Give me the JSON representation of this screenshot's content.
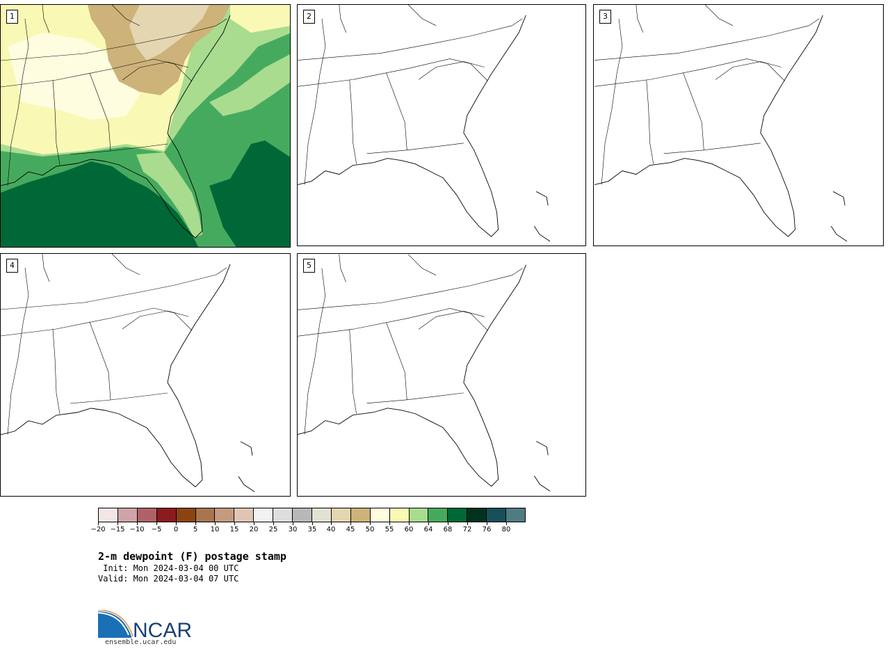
{
  "panels": [
    {
      "number": "1",
      "filled": true
    },
    {
      "number": "2",
      "filled": false
    },
    {
      "number": "3",
      "filled": false
    },
    {
      "number": "4",
      "filled": false
    },
    {
      "number": "5",
      "filled": false
    }
  ],
  "colorbar": {
    "levels": [
      "-20",
      "-15",
      "-10",
      "-5",
      "0",
      "5",
      "10",
      "15",
      "20",
      "25",
      "30",
      "35",
      "40",
      "45",
      "50",
      "55",
      "60",
      "64",
      "68",
      "72",
      "76",
      "80"
    ],
    "colors": [
      "#f5e6e6",
      "#d0a3a8",
      "#b06268",
      "#8b1a1f",
      "#8b4410",
      "#a87550",
      "#c49a80",
      "#e0c5b4",
      "#f2f2f2",
      "#dedede",
      "#b8b8b8",
      "#e2e2d4",
      "#e4d6b0",
      "#cdb27a",
      "#fefde0",
      "#f9f9b5",
      "#a9dc8f",
      "#46aa5e",
      "#006837",
      "#00331f",
      "#174f5b",
      "#4f7b82"
    ]
  },
  "title": "2-m dewpoint (F) postage stamp",
  "init": " Init: Mon 2024-03-04 00 UTC",
  "valid": "Valid: Mon 2024-03-04 07 UTC",
  "logo": {
    "text": "NCAR",
    "url": "ensemble.ucar.edu"
  }
}
